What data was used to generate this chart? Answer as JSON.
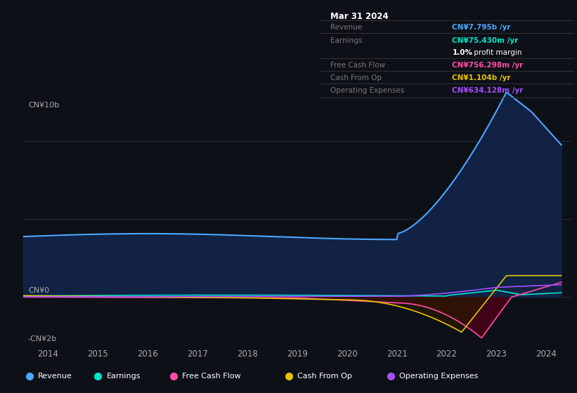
{
  "background_color": "#0d1117",
  "plot_bg_color": "#0d1117",
  "y_label_top": "CN¥10b",
  "y_label_zero": "CN¥0",
  "y_label_neg": "-CN¥2b",
  "x_ticks": [
    2014,
    2015,
    2016,
    2017,
    2018,
    2019,
    2020,
    2021,
    2022,
    2023,
    2024
  ],
  "ylim_min": -2500000000.0,
  "ylim_max": 12000000000.0,
  "series_colors": {
    "Revenue": "#4da6ff",
    "Earnings": "#00e5cc",
    "Free Cash Flow": "#ff4da6",
    "Cash From Op": "#e6c300",
    "Operating Expenses": "#a64dff"
  },
  "legend_items": [
    "Revenue",
    "Earnings",
    "Free Cash Flow",
    "Cash From Op",
    "Operating Expenses"
  ],
  "info_box": {
    "title": "Mar 31 2024",
    "Revenue_label": "Revenue",
    "Revenue_value": "CN¥7.795b /yr",
    "Revenue_color": "#4da6ff",
    "Earnings_label": "Earnings",
    "Earnings_value": "CN¥75.430m /yr",
    "Earnings_color": "#00e5cc",
    "profit_bold": "1.0%",
    "profit_rest": " profit margin",
    "FCF_label": "Free Cash Flow",
    "FCF_value": "CN¥756.298m /yr",
    "FCF_color": "#ff4da6",
    "COP_label": "Cash From Op",
    "COP_value": "CN¥1.104b /yr",
    "COP_color": "#e6c300",
    "OE_label": "Operating Expenses",
    "OE_value": "CN¥634.128m /yr",
    "OE_color": "#a64dff"
  }
}
